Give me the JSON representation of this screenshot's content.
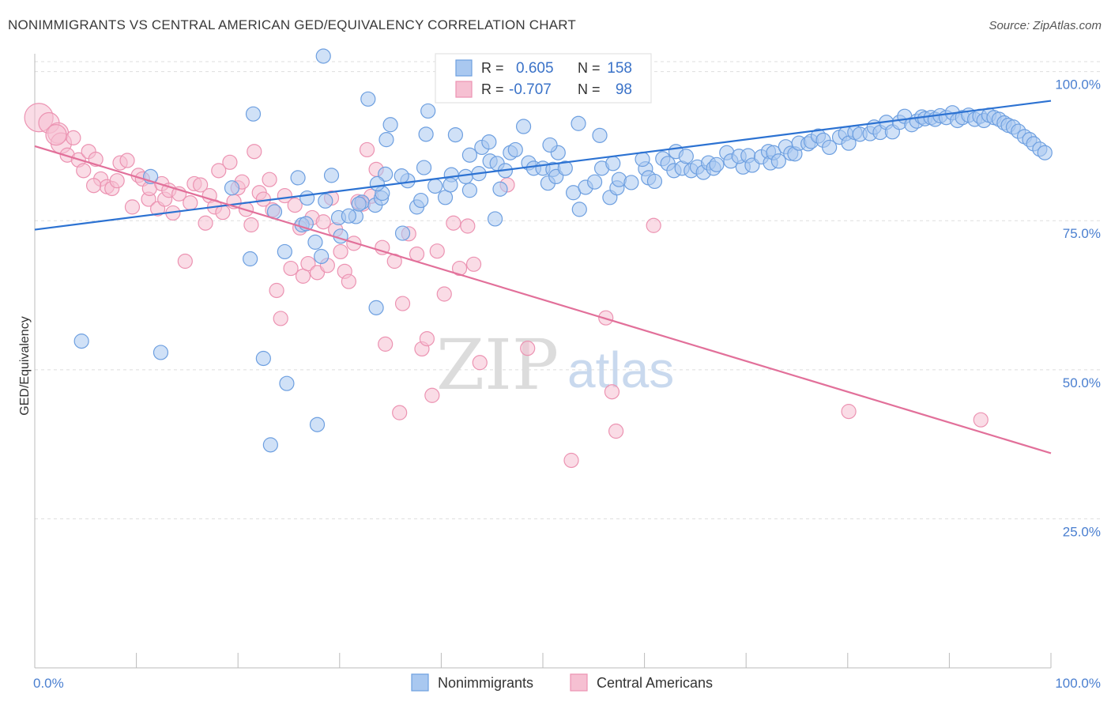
{
  "header": {
    "title": "NONIMMIGRANTS VS CENTRAL AMERICAN GED/EQUIVALENCY CORRELATION CHART",
    "source": "Source: ZipAtlas.com"
  },
  "watermark": {
    "zip": "ZIP",
    "atlas": "atlas"
  },
  "colors": {
    "blue_fill": "#a9c8f0",
    "blue_stroke": "#6d9fe0",
    "blue_line": "#2c72d2",
    "pink_fill": "#f6c0d2",
    "pink_stroke": "#ec93b2",
    "pink_line": "#e2709a",
    "grid": "#dddddd",
    "tick_text": "#4a7fd0"
  },
  "legend_top": {
    "rows": [
      {
        "r_label": "R =",
        "r_value": "0.605",
        "n_label": "N =",
        "n_value": "158"
      },
      {
        "r_label": "R =",
        "r_value": "-0.707",
        "n_label": "N =",
        "n_value": "98"
      }
    ]
  },
  "chart_data": {
    "type": "scatter",
    "title": "NONIMMIGRANTS VS CENTRAL AMERICAN GED/EQUIVALENCY CORRELATION CHART",
    "xlabel": "",
    "ylabel": "GED/Equivalency",
    "xlim": [
      0,
      100
    ],
    "ylim": [
      0,
      103
    ],
    "x_tick_labels": [
      "0.0%",
      "100.0%"
    ],
    "y_ticks": [
      25,
      50,
      75,
      100
    ],
    "y_tick_labels": [
      "25.0%",
      "50.0%",
      "75.0%",
      "100.0%"
    ],
    "grid": true,
    "legend_position": "bottom",
    "series": [
      {
        "name": "Nonimmigrants",
        "r": 0.605,
        "n": 158,
        "trend": {
          "x": [
            0,
            100
          ],
          "y": [
            73.5,
            95.1
          ]
        },
        "points": [
          [
            4.6,
            54.8
          ],
          [
            11.4,
            82.4
          ],
          [
            12.4,
            52.9
          ],
          [
            19.4,
            80.5
          ],
          [
            21.2,
            68.6
          ],
          [
            21.5,
            92.9
          ],
          [
            22.5,
            51.9
          ],
          [
            23.2,
            37.4
          ],
          [
            23.6,
            76.5
          ],
          [
            24.6,
            69.8
          ],
          [
            24.8,
            47.7
          ],
          [
            26.3,
            74.3
          ],
          [
            26.8,
            78.8
          ],
          [
            27.6,
            71.4
          ],
          [
            27.8,
            40.8
          ],
          [
            28.4,
            102.6
          ],
          [
            28.6,
            78.3
          ],
          [
            29.2,
            82.6
          ],
          [
            29.9,
            75.5
          ],
          [
            30.1,
            72.4
          ],
          [
            31.6,
            75.7
          ],
          [
            32.2,
            78.1
          ],
          [
            32.8,
            95.4
          ],
          [
            33.5,
            77.6
          ],
          [
            33.6,
            60.4
          ],
          [
            34.1,
            78.8
          ],
          [
            34.2,
            79.6
          ],
          [
            35.0,
            91.1
          ],
          [
            36.7,
            81.7
          ],
          [
            36.1,
            82.5
          ],
          [
            34.5,
            82.8
          ],
          [
            37.6,
            77.3
          ],
          [
            38.3,
            83.9
          ],
          [
            39.4,
            80.8
          ],
          [
            40.6,
            97.3
          ],
          [
            40.4,
            78.9
          ],
          [
            41.0,
            82.7
          ],
          [
            41.4,
            89.4
          ],
          [
            42.4,
            82.4
          ],
          [
            42.8,
            86.0
          ],
          [
            42.8,
            80.1
          ],
          [
            44.8,
            85.0
          ],
          [
            44.0,
            87.3
          ],
          [
            45.5,
            84.6
          ],
          [
            45.3,
            75.3
          ],
          [
            46.3,
            83.4
          ],
          [
            46.8,
            86.4
          ],
          [
            47.3,
            86.9
          ],
          [
            48.6,
            84.7
          ],
          [
            49.1,
            83.8
          ],
          [
            50.0,
            83.8
          ],
          [
            50.5,
            81.3
          ],
          [
            51.0,
            83.6
          ],
          [
            51.5,
            86.4
          ],
          [
            51.3,
            82.4
          ],
          [
            52.2,
            83.8
          ],
          [
            53.0,
            79.7
          ],
          [
            53.6,
            76.9
          ],
          [
            54.2,
            80.6
          ],
          [
            55.1,
            81.5
          ],
          [
            55.8,
            83.8
          ],
          [
            56.9,
            84.6
          ],
          [
            56.6,
            78.9
          ],
          [
            57.3,
            80.5
          ],
          [
            57.5,
            81.9
          ],
          [
            58.7,
            81.4
          ],
          [
            60.1,
            83.7
          ],
          [
            59.8,
            85.3
          ],
          [
            60.4,
            82.2
          ],
          [
            61.8,
            85.4
          ],
          [
            61.0,
            81.6
          ],
          [
            62.3,
            84.6
          ],
          [
            62.9,
            83.4
          ],
          [
            63.1,
            86.6
          ],
          [
            63.7,
            83.8
          ],
          [
            64.1,
            85.8
          ],
          [
            64.6,
            83.4
          ],
          [
            65.2,
            84.0
          ],
          [
            65.8,
            83.1
          ],
          [
            66.3,
            84.7
          ],
          [
            66.8,
            83.8
          ],
          [
            67.1,
            84.4
          ],
          [
            68.1,
            86.4
          ],
          [
            68.5,
            85.0
          ],
          [
            69.7,
            84.0
          ],
          [
            69.3,
            85.8
          ],
          [
            70.2,
            85.9
          ],
          [
            70.6,
            84.3
          ],
          [
            71.5,
            85.7
          ],
          [
            72.2,
            86.6
          ],
          [
            72.4,
            84.7
          ],
          [
            72.7,
            86.4
          ],
          [
            73.2,
            85.0
          ],
          [
            73.9,
            87.4
          ],
          [
            74.4,
            86.3
          ],
          [
            74.8,
            86.2
          ],
          [
            75.2,
            88.0
          ],
          [
            76.1,
            87.9
          ],
          [
            76.4,
            88.3
          ],
          [
            77.1,
            89.2
          ],
          [
            77.6,
            88.5
          ],
          [
            78.2,
            87.3
          ],
          [
            79.2,
            89.0
          ],
          [
            79.8,
            89.6
          ],
          [
            80.1,
            88.0
          ],
          [
            80.7,
            89.8
          ],
          [
            81.2,
            89.5
          ],
          [
            82.2,
            89.6
          ],
          [
            82.6,
            90.7
          ],
          [
            83.2,
            89.8
          ],
          [
            83.8,
            91.5
          ],
          [
            84.4,
            89.9
          ],
          [
            85.1,
            91.5
          ],
          [
            85.6,
            92.5
          ],
          [
            86.3,
            91.1
          ],
          [
            86.8,
            91.7
          ],
          [
            87.3,
            92.4
          ],
          [
            87.6,
            92.1
          ],
          [
            88.2,
            92.3
          ],
          [
            88.6,
            92.0
          ],
          [
            89.1,
            92.6
          ],
          [
            89.7,
            92.3
          ],
          [
            90.3,
            93.1
          ],
          [
            90.8,
            91.8
          ],
          [
            91.3,
            92.3
          ],
          [
            91.9,
            92.7
          ],
          [
            92.5,
            92.0
          ],
          [
            93.0,
            92.5
          ],
          [
            93.4,
            91.8
          ],
          [
            93.9,
            92.7
          ],
          [
            94.4,
            92.3
          ],
          [
            94.9,
            92.0
          ],
          [
            95.4,
            91.4
          ],
          [
            95.8,
            91.0
          ],
          [
            96.3,
            90.7
          ],
          [
            96.8,
            90.0
          ],
          [
            97.4,
            89.1
          ],
          [
            97.9,
            88.6
          ],
          [
            98.3,
            87.9
          ],
          [
            98.9,
            87.0
          ],
          [
            99.4,
            86.4
          ],
          [
            38.7,
            93.4
          ],
          [
            38.5,
            89.5
          ],
          [
            45.8,
            80.3
          ],
          [
            43.7,
            82.9
          ],
          [
            55.6,
            89.3
          ],
          [
            53.5,
            91.3
          ],
          [
            50.7,
            87.7
          ],
          [
            40.9,
            81.0
          ],
          [
            30.9,
            75.8
          ],
          [
            25.9,
            82.2
          ],
          [
            36.2,
            72.9
          ],
          [
            31.9,
            77.8
          ],
          [
            28.2,
            69.0
          ],
          [
            33.7,
            81.2
          ],
          [
            48.1,
            90.8
          ],
          [
            34.6,
            88.6
          ],
          [
            44.7,
            88.2
          ],
          [
            38.0,
            78.4
          ],
          [
            26.7,
            74.5
          ]
        ]
      },
      {
        "name": "Central Americans",
        "r": -0.707,
        "n": 98,
        "trend": {
          "x": [
            0,
            100
          ],
          "y": [
            87.5,
            36.0
          ]
        },
        "points": [
          [
            0.4,
            92.3
          ],
          [
            1.4,
            91.4
          ],
          [
            2.3,
            89.7
          ],
          [
            2.6,
            88.0
          ],
          [
            3.2,
            86.0
          ],
          [
            3.8,
            88.9
          ],
          [
            4.3,
            85.2
          ],
          [
            4.8,
            83.4
          ],
          [
            5.3,
            86.6
          ],
          [
            6.0,
            85.3
          ],
          [
            6.5,
            82.0
          ],
          [
            7.1,
            80.7
          ],
          [
            7.6,
            80.4
          ],
          [
            8.1,
            81.7
          ],
          [
            8.4,
            84.7
          ],
          [
            9.1,
            85.1
          ],
          [
            9.6,
            77.3
          ],
          [
            10.2,
            82.6
          ],
          [
            10.6,
            82.0
          ],
          [
            11.2,
            78.6
          ],
          [
            11.3,
            80.4
          ],
          [
            12.1,
            77.0
          ],
          [
            12.5,
            81.2
          ],
          [
            12.8,
            78.6
          ],
          [
            13.2,
            80.1
          ],
          [
            13.6,
            76.3
          ],
          [
            14.2,
            79.5
          ],
          [
            14.8,
            68.2
          ],
          [
            15.3,
            78.0
          ],
          [
            15.7,
            81.2
          ],
          [
            16.3,
            81.0
          ],
          [
            16.8,
            74.6
          ],
          [
            17.2,
            79.2
          ],
          [
            17.7,
            77.3
          ],
          [
            18.1,
            83.4
          ],
          [
            18.5,
            76.4
          ],
          [
            19.2,
            84.8
          ],
          [
            19.6,
            78.2
          ],
          [
            20.0,
            80.5
          ],
          [
            20.4,
            81.5
          ],
          [
            20.8,
            76.9
          ],
          [
            21.3,
            74.3
          ],
          [
            21.6,
            86.6
          ],
          [
            22.1,
            79.7
          ],
          [
            22.5,
            78.6
          ],
          [
            23.1,
            81.9
          ],
          [
            23.4,
            76.8
          ],
          [
            23.8,
            63.3
          ],
          [
            24.2,
            58.6
          ],
          [
            24.6,
            79.2
          ],
          [
            25.2,
            67.0
          ],
          [
            25.6,
            77.6
          ],
          [
            26.1,
            73.8
          ],
          [
            26.4,
            65.7
          ],
          [
            26.9,
            67.8
          ],
          [
            27.3,
            75.5
          ],
          [
            27.8,
            66.3
          ],
          [
            28.4,
            74.8
          ],
          [
            28.8,
            67.5
          ],
          [
            29.2,
            78.8
          ],
          [
            29.6,
            73.5
          ],
          [
            30.1,
            69.8
          ],
          [
            30.5,
            66.5
          ],
          [
            30.9,
            64.8
          ],
          [
            31.4,
            71.2
          ],
          [
            31.8,
            78.2
          ],
          [
            32.3,
            77.8
          ],
          [
            32.7,
            86.9
          ],
          [
            33.1,
            79.1
          ],
          [
            33.6,
            83.6
          ],
          [
            34.2,
            70.5
          ],
          [
            34.5,
            54.3
          ],
          [
            35.4,
            68.2
          ],
          [
            35.9,
            42.8
          ],
          [
            36.2,
            61.1
          ],
          [
            36.8,
            72.8
          ],
          [
            37.6,
            69.4
          ],
          [
            38.1,
            53.5
          ],
          [
            38.6,
            55.2
          ],
          [
            39.1,
            45.7
          ],
          [
            39.6,
            69.9
          ],
          [
            40.3,
            62.7
          ],
          [
            41.2,
            74.6
          ],
          [
            41.8,
            67.0
          ],
          [
            42.6,
            74.1
          ],
          [
            43.8,
            51.2
          ],
          [
            43.2,
            67.7
          ],
          [
            46.5,
            81.0
          ],
          [
            48.5,
            53.6
          ],
          [
            52.8,
            34.8
          ],
          [
            56.8,
            46.3
          ],
          [
            56.2,
            58.7
          ],
          [
            60.9,
            74.2
          ],
          [
            80.1,
            43.0
          ],
          [
            93.1,
            41.6
          ],
          [
            57.2,
            39.7
          ],
          [
            5.8,
            80.9
          ],
          [
            2.1,
            89.4
          ]
        ]
      }
    ]
  }
}
